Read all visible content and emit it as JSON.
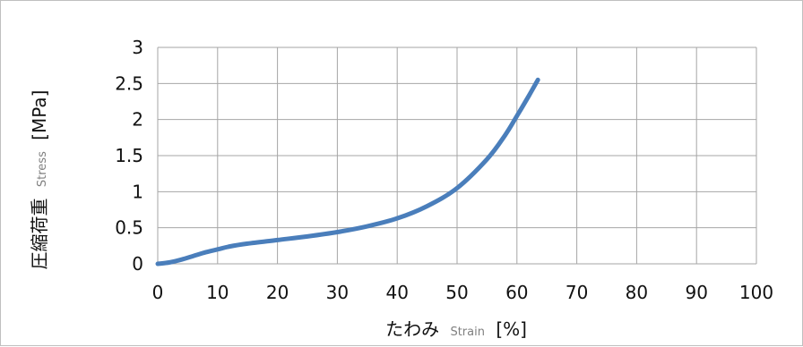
{
  "chart_data": {
    "type": "line",
    "xlabel": {
      "main": "たわみ",
      "sub": "Strain",
      "unit": "[%]"
    },
    "ylabel": {
      "main": "圧縮荷重",
      "sub": "Stress",
      "unit": "[MPa]"
    },
    "xlim": [
      0,
      100
    ],
    "ylim": [
      0,
      3
    ],
    "x_ticks": [
      "0",
      "10",
      "20",
      "30",
      "40",
      "50",
      "60",
      "70",
      "80",
      "90",
      "100"
    ],
    "y_ticks": [
      "0",
      "0.5",
      "1",
      "1.5",
      "2",
      "2.5",
      "3"
    ],
    "grid": true,
    "series": [
      {
        "color": "#4a7ebb",
        "x": [
          0,
          2,
          4,
          6,
          8,
          10,
          12,
          15,
          20,
          25,
          30,
          35,
          40,
          45,
          50,
          55,
          58,
          60,
          62,
          63.5
        ],
        "y": [
          0,
          0.02,
          0.06,
          0.11,
          0.16,
          0.2,
          0.24,
          0.28,
          0.33,
          0.38,
          0.44,
          0.52,
          0.63,
          0.8,
          1.05,
          1.45,
          1.78,
          2.05,
          2.33,
          2.55
        ]
      }
    ]
  }
}
